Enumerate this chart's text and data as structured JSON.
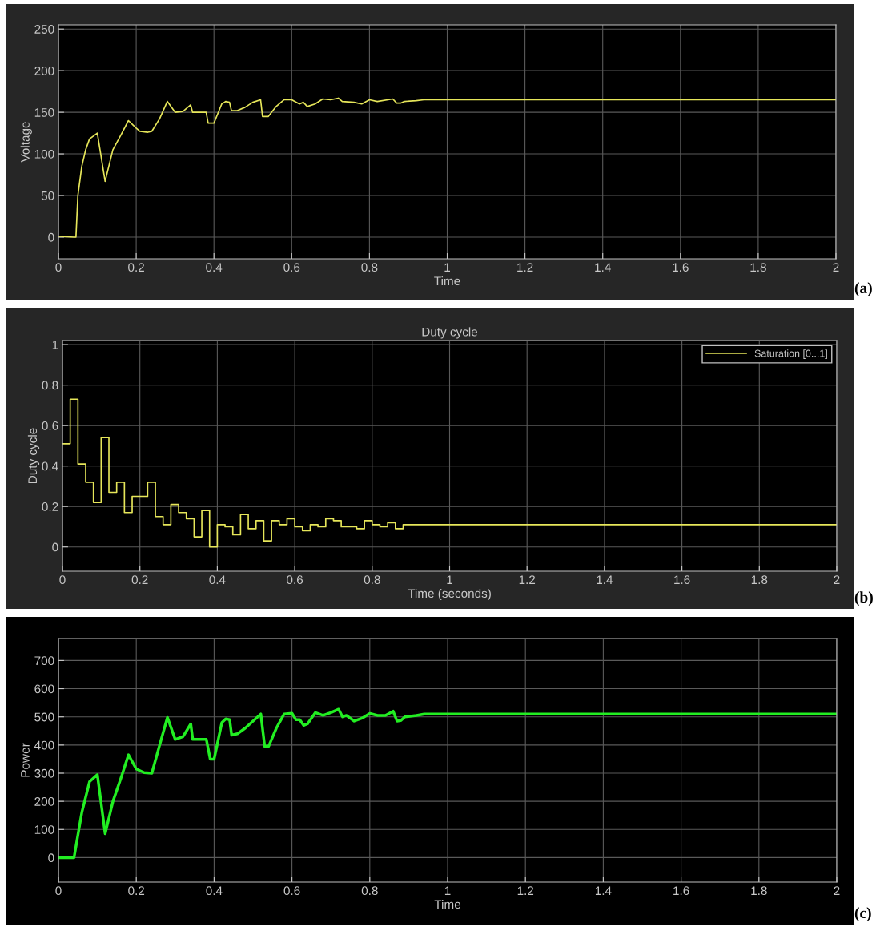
{
  "chart_data": [
    {
      "type": "line",
      "xlabel": "Time",
      "ylabel": "Voltage",
      "xlim": [
        0,
        2
      ],
      "ylim": [
        -26,
        255
      ],
      "xticks": [
        0,
        0.2,
        0.4,
        0.6,
        0.8,
        1,
        1.2,
        1.4,
        1.6,
        1.8,
        2
      ],
      "yticks": [
        0,
        50,
        100,
        150,
        200,
        250
      ],
      "grid": true,
      "annotations": [
        "(a)"
      ],
      "series": [
        {
          "color": "#e6e65a",
          "x": [
            0,
            0.04,
            0.045,
            0.05,
            0.06,
            0.07,
            0.08,
            0.1,
            0.12,
            0.14,
            0.16,
            0.18,
            0.2,
            0.21,
            0.23,
            0.24,
            0.26,
            0.28,
            0.3,
            0.32,
            0.34,
            0.345,
            0.38,
            0.385,
            0.4,
            0.42,
            0.43,
            0.44,
            0.445,
            0.46,
            0.48,
            0.5,
            0.52,
            0.525,
            0.54,
            0.56,
            0.58,
            0.6,
            0.62,
            0.63,
            0.64,
            0.66,
            0.68,
            0.7,
            0.72,
            0.73,
            0.76,
            0.78,
            0.8,
            0.82,
            0.86,
            0.87,
            0.88,
            0.89,
            0.92,
            0.94,
            2
          ],
          "values": [
            1,
            0,
            0,
            50,
            85,
            105,
            118,
            125,
            67,
            105,
            122,
            140,
            131,
            127,
            126,
            127,
            142,
            163,
            150,
            151,
            159,
            150,
            150,
            137,
            137,
            160,
            163,
            162,
            152,
            152,
            156,
            162,
            165,
            145,
            145,
            157,
            165,
            165,
            160,
            162,
            157,
            160,
            166,
            165,
            167,
            163,
            162,
            160,
            165,
            163,
            166,
            161,
            161,
            163,
            164,
            165,
            165
          ]
        }
      ]
    },
    {
      "type": "step",
      "title": "Duty cycle",
      "xlabel": "Time (seconds)",
      "ylabel": "Duty cycle",
      "xlim": [
        0,
        2
      ],
      "ylim": [
        -0.12,
        1.02
      ],
      "xticks": [
        0,
        0.2,
        0.4,
        0.6,
        0.8,
        1,
        1.2,
        1.4,
        1.6,
        1.8,
        2
      ],
      "yticks": [
        0,
        0.2,
        0.4,
        0.6,
        0.8,
        1
      ],
      "grid": true,
      "legend": "top right",
      "annotations": [
        "(b)"
      ],
      "series": [
        {
          "name": "Saturation [0...1]",
          "color": "#e6e65a",
          "x": [
            0,
            0.02,
            0.04,
            0.06,
            0.08,
            0.1,
            0.12,
            0.14,
            0.16,
            0.18,
            0.2,
            0.22,
            0.24,
            0.26,
            0.28,
            0.3,
            0.32,
            0.34,
            0.36,
            0.38,
            0.4,
            0.42,
            0.44,
            0.46,
            0.48,
            0.5,
            0.52,
            0.54,
            0.56,
            0.58,
            0.6,
            0.62,
            0.64,
            0.66,
            0.68,
            0.7,
            0.72,
            0.74,
            0.76,
            0.78,
            0.8,
            0.82,
            0.84,
            0.86,
            0.88,
            2
          ],
          "values": [
            0.51,
            0.73,
            0.41,
            0.32,
            0.22,
            0.54,
            0.27,
            0.32,
            0.17,
            0.25,
            0.25,
            0.32,
            0.15,
            0.11,
            0.21,
            0.17,
            0.14,
            0.05,
            0.18,
            0.0,
            0.11,
            0.1,
            0.06,
            0.16,
            0.09,
            0.13,
            0.03,
            0.13,
            0.11,
            0.14,
            0.1,
            0.08,
            0.11,
            0.1,
            0.14,
            0.13,
            0.1,
            0.1,
            0.09,
            0.13,
            0.11,
            0.1,
            0.12,
            0.09,
            0.11,
            0.11
          ]
        }
      ]
    },
    {
      "type": "line",
      "xlabel": "Time",
      "ylabel": "Power",
      "xlim": [
        0,
        2
      ],
      "ylim": [
        -87,
        778
      ],
      "xticks": [
        0,
        0.2,
        0.4,
        0.6,
        0.8,
        1,
        1.2,
        1.4,
        1.6,
        1.8,
        2
      ],
      "yticks": [
        0,
        100,
        200,
        300,
        400,
        500,
        600,
        700
      ],
      "grid": true,
      "annotations": [
        "(c)"
      ],
      "series": [
        {
          "color": "#22ee22",
          "x": [
            0,
            0.04,
            0.05,
            0.06,
            0.08,
            0.1,
            0.12,
            0.14,
            0.16,
            0.18,
            0.2,
            0.22,
            0.24,
            0.26,
            0.28,
            0.3,
            0.32,
            0.34,
            0.345,
            0.38,
            0.39,
            0.4,
            0.42,
            0.43,
            0.44,
            0.445,
            0.46,
            0.48,
            0.5,
            0.52,
            0.53,
            0.54,
            0.56,
            0.58,
            0.6,
            0.61,
            0.62,
            0.63,
            0.64,
            0.66,
            0.68,
            0.7,
            0.72,
            0.73,
            0.74,
            0.76,
            0.78,
            0.8,
            0.82,
            0.84,
            0.86,
            0.87,
            0.88,
            0.89,
            0.92,
            0.94,
            2
          ],
          "values": [
            0,
            0,
            80,
            160,
            270,
            295,
            85,
            200,
            280,
            365,
            315,
            302,
            300,
            400,
            498,
            420,
            430,
            475,
            420,
            420,
            350,
            350,
            480,
            493,
            490,
            435,
            440,
            460,
            485,
            510,
            395,
            395,
            460,
            510,
            513,
            490,
            490,
            470,
            475,
            515,
            505,
            515,
            527,
            500,
            505,
            485,
            495,
            512,
            505,
            505,
            520,
            485,
            487,
            500,
            505,
            510,
            510
          ]
        }
      ]
    }
  ]
}
